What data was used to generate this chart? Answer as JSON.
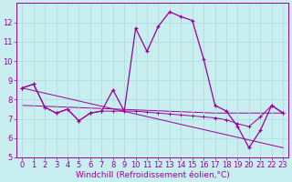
{
  "title": "",
  "xlabel": "Windchill (Refroidissement éolien,°C)",
  "bg_color": "#c8eef0",
  "line_color": "#990099",
  "grid_color": "#b0dde0",
  "xlim": [
    -0.5,
    23.5
  ],
  "ylim": [
    5,
    13
  ],
  "xticks": [
    0,
    1,
    2,
    3,
    4,
    5,
    6,
    7,
    8,
    9,
    10,
    11,
    12,
    13,
    14,
    15,
    16,
    17,
    18,
    19,
    20,
    21,
    22,
    23
  ],
  "yticks": [
    5,
    6,
    7,
    8,
    9,
    10,
    11,
    12
  ],
  "series1_x": [
    0,
    1,
    2,
    3,
    4,
    5,
    6,
    7,
    8,
    9,
    10,
    11,
    12,
    13,
    14,
    15,
    16,
    17,
    18,
    19,
    20,
    21,
    22,
    23
  ],
  "series1_y": [
    8.6,
    8.8,
    7.6,
    7.3,
    7.5,
    6.9,
    7.3,
    7.4,
    8.5,
    7.4,
    11.7,
    10.5,
    11.8,
    12.55,
    12.3,
    12.1,
    10.1,
    7.7,
    7.4,
    6.6,
    5.5,
    6.4,
    7.7,
    7.3
  ],
  "series2_x": [
    0,
    1,
    2,
    3,
    4,
    5,
    6,
    7,
    8,
    9,
    10,
    11,
    12,
    13,
    14,
    15,
    16,
    17,
    18,
    19,
    20,
    21,
    22,
    23
  ],
  "series2_y": [
    8.6,
    8.8,
    7.6,
    7.3,
    7.5,
    6.9,
    7.3,
    7.4,
    7.4,
    7.4,
    7.4,
    7.35,
    7.3,
    7.25,
    7.2,
    7.15,
    7.1,
    7.05,
    6.95,
    6.75,
    6.6,
    7.1,
    7.7,
    7.3
  ],
  "series3_x": [
    0,
    23
  ],
  "series3_y": [
    8.6,
    5.5
  ],
  "series4_x": [
    0,
    17,
    23
  ],
  "series4_y": [
    7.7,
    7.3,
    7.3
  ],
  "xlabel_fontsize": 6.5,
  "tick_fontsize": 6
}
